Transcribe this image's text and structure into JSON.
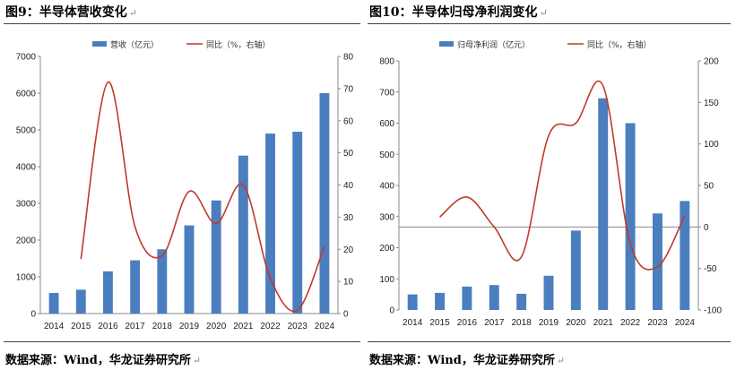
{
  "left": {
    "title": "图9：半导体营收变化",
    "source": "数据来源：Wind，华龙证券研究所",
    "chart_data": {
      "type": "bar",
      "categories": [
        "2014",
        "2015",
        "2016",
        "2017",
        "2018",
        "2019",
        "2020",
        "2021",
        "2022",
        "2023",
        "2024"
      ],
      "series": [
        {
          "name": "营收（亿元）",
          "type": "bar",
          "axis": "left",
          "values": [
            560,
            650,
            1150,
            1450,
            1750,
            2400,
            3080,
            4300,
            4900,
            4950,
            6000
          ]
        },
        {
          "name": "同比（%，右轴）",
          "type": "line",
          "axis": "right",
          "values": [
            null,
            17,
            72,
            27,
            18,
            38,
            28,
            40,
            11,
            1,
            21
          ]
        }
      ],
      "ylim": [
        0,
        7000
      ],
      "yticks": [
        0,
        1000,
        2000,
        3000,
        4000,
        5000,
        6000,
        7000
      ],
      "y2lim": [
        0,
        80
      ],
      "y2ticks": [
        0,
        10,
        20,
        30,
        40,
        50,
        60,
        70,
        80
      ],
      "grid": false,
      "legend": "top",
      "colors": {
        "bar": "#4a7ebf",
        "line": "#c0392b"
      }
    }
  },
  "right": {
    "title": "图10：半导体归母净利润变化",
    "source": "数据来源：Wind，华龙证券研究所",
    "chart_data": {
      "type": "bar",
      "categories": [
        "2014",
        "2015",
        "2016",
        "2017",
        "2018",
        "2019",
        "2020",
        "2021",
        "2022",
        "2023",
        "2024"
      ],
      "series": [
        {
          "name": "归母净利润（亿元）",
          "type": "bar",
          "axis": "left",
          "values": [
            50,
            55,
            75,
            80,
            52,
            110,
            255,
            680,
            600,
            310,
            350
          ]
        },
        {
          "name": "同比（%，右轴）",
          "type": "line",
          "axis": "right",
          "values": [
            null,
            12,
            36,
            0,
            -36,
            110,
            125,
            170,
            -20,
            -48,
            14
          ]
        }
      ],
      "ylim": [
        0,
        800
      ],
      "yticks": [
        0,
        100,
        200,
        300,
        400,
        500,
        600,
        700,
        800
      ],
      "y2lim": [
        -100,
        200
      ],
      "y2ticks": [
        -100,
        -50,
        0,
        50,
        100,
        150,
        200
      ],
      "grid": false,
      "legend": "top",
      "colors": {
        "bar": "#4a7ebf",
        "line": "#c0392b"
      }
    }
  }
}
